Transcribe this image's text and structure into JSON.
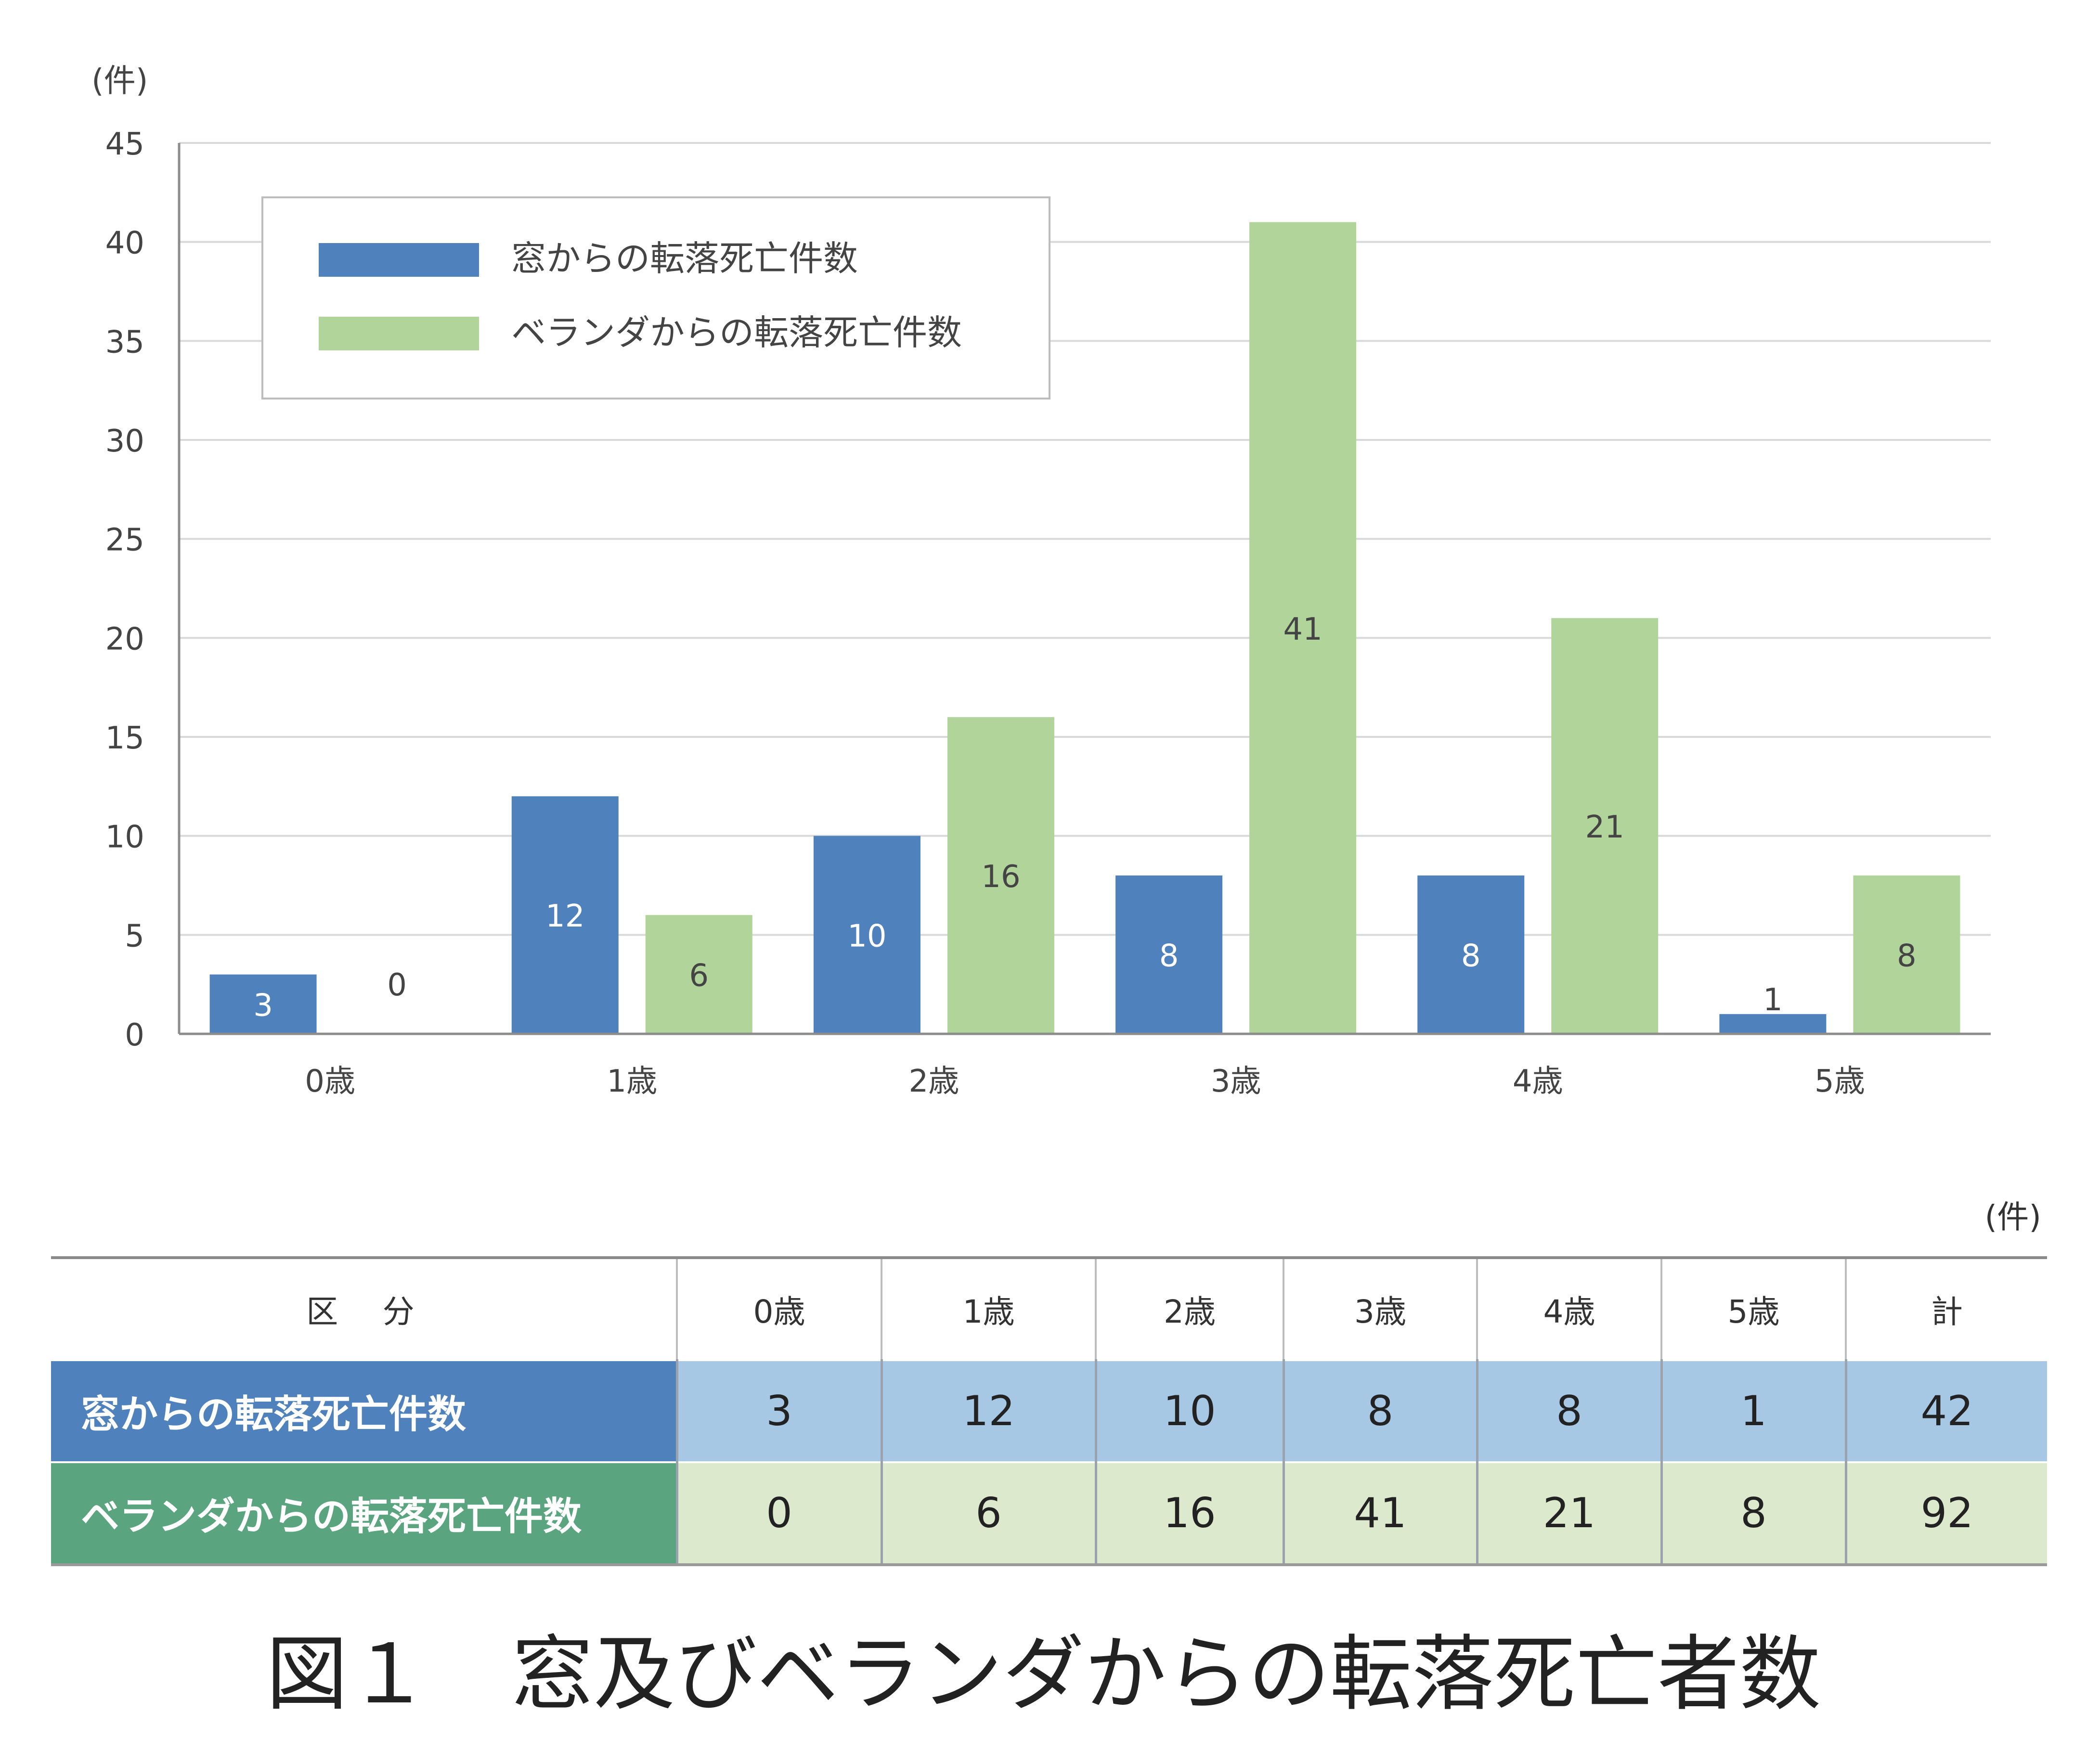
{
  "chart_data": {
    "type": "bar",
    "unit_label": "(件)",
    "categories": [
      "0歳",
      "1歳",
      "2歳",
      "3歳",
      "4歳",
      "5歳"
    ],
    "series": [
      {
        "name": "窓からの転落死亡件数",
        "color": "#4f81bd",
        "values": [
          3,
          12,
          10,
          8,
          8,
          1
        ]
      },
      {
        "name": "ベランダからの転落死亡件数",
        "color": "#b1d49a",
        "values": [
          0,
          6,
          16,
          41,
          21,
          8
        ]
      }
    ],
    "ylim": [
      0,
      45
    ],
    "yticks": [
      0,
      5,
      10,
      15,
      20,
      25,
      30,
      35,
      40,
      45
    ],
    "grid": true,
    "legend_position": "top-left"
  },
  "table": {
    "unit": "(件)",
    "header": [
      "区　分",
      "0歳",
      "1歳",
      "2歳",
      "3歳",
      "4歳",
      "5歳",
      "計"
    ],
    "rows": [
      {
        "label": "窓からの転落死亡件数",
        "values": [
          "3",
          "12",
          "10",
          "8",
          "8",
          "1",
          "42"
        ]
      },
      {
        "label": "ベランダからの転落死亡件数",
        "values": [
          "0",
          "6",
          "16",
          "41",
          "21",
          "8",
          "92"
        ]
      }
    ]
  },
  "caption": "図１　窓及びベランダからの転落死亡者数"
}
